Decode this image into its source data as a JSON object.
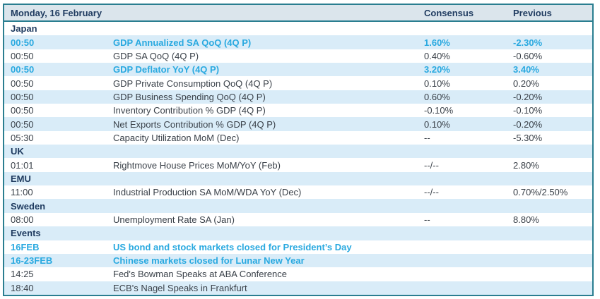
{
  "table": {
    "title": "Monday, 16 February",
    "columns": {
      "consensus": "Consensus",
      "previous": "Previous"
    },
    "rows": [
      {
        "type": "section",
        "label": "Japan"
      },
      {
        "type": "event",
        "time": "00:50",
        "event": "GDP Annualized SA QoQ (4Q P)",
        "consensus": "1.60%",
        "previous": "-2.30%",
        "highlight": true
      },
      {
        "type": "event",
        "time": "00:50",
        "event": "GDP SA QoQ (4Q P)",
        "consensus": "0.40%",
        "previous": "-0.60%",
        "highlight": false
      },
      {
        "type": "event",
        "time": "00:50",
        "event": "GDP Deflator YoY (4Q P)",
        "consensus": "3.20%",
        "previous": "3.40%",
        "highlight": true
      },
      {
        "type": "event",
        "time": "00:50",
        "event": "GDP Private Consumption QoQ (4Q P)",
        "consensus": "0.10%",
        "previous": "0.20%",
        "highlight": false
      },
      {
        "type": "event",
        "time": "00:50",
        "event": "GDP Business Spending QoQ (4Q P)",
        "consensus": "0.60%",
        "previous": "-0.20%",
        "highlight": false
      },
      {
        "type": "event",
        "time": "00:50",
        "event": "Inventory Contribution % GDP (4Q P)",
        "consensus": "-0.10%",
        "previous": "-0.10%",
        "highlight": false
      },
      {
        "type": "event",
        "time": "00:50",
        "event": "Net Exports Contribution % GDP (4Q P)",
        "consensus": "0.10%",
        "previous": "-0.20%",
        "highlight": false
      },
      {
        "type": "event",
        "time": "05:30",
        "event": "Capacity Utilization MoM (Dec)",
        "consensus": "--",
        "previous": "-5.30%",
        "highlight": false
      },
      {
        "type": "section",
        "label": "UK"
      },
      {
        "type": "event",
        "time": "01:01",
        "event": "Rightmove House Prices MoM/YoY (Feb)",
        "consensus": "--/--",
        "previous": "2.80%",
        "highlight": false
      },
      {
        "type": "section",
        "label": "EMU"
      },
      {
        "type": "event",
        "time": "11:00",
        "event": "Industrial Production SA MoM/WDA YoY (Dec)",
        "consensus": "--/--",
        "previous": "0.70%/2.50%",
        "highlight": false
      },
      {
        "type": "section",
        "label": "Sweden"
      },
      {
        "type": "event",
        "time": "08:00",
        "event": "Unemployment Rate SA (Jan)",
        "consensus": "--",
        "previous": "8.80%",
        "highlight": false
      },
      {
        "type": "section",
        "label": "Events"
      },
      {
        "type": "event",
        "time": "16FEB",
        "event": "US bond and stock markets closed for President’s Day",
        "consensus": "",
        "previous": "",
        "highlight": true
      },
      {
        "type": "event",
        "time": "16-23FEB",
        "event": "Chinese markets closed for Lunar New Year",
        "consensus": "",
        "previous": "",
        "highlight": true
      },
      {
        "type": "event",
        "time": "14:25",
        "event": "Fed's Bowman Speaks at ABA Conference",
        "consensus": "",
        "previous": "",
        "highlight": false
      },
      {
        "type": "event",
        "time": "18:40",
        "event": "ECB's Nagel Speaks in Frankfurt",
        "consensus": "",
        "previous": "",
        "highlight": false
      }
    ]
  },
  "colors": {
    "border": "#2a7e90",
    "header_bg": "#dbe5ec",
    "stripe_bg": "#d9ecf8",
    "navy_text": "#1e3a5f",
    "body_text": "#3a4149",
    "accent_cyan": "#29a9e0"
  }
}
